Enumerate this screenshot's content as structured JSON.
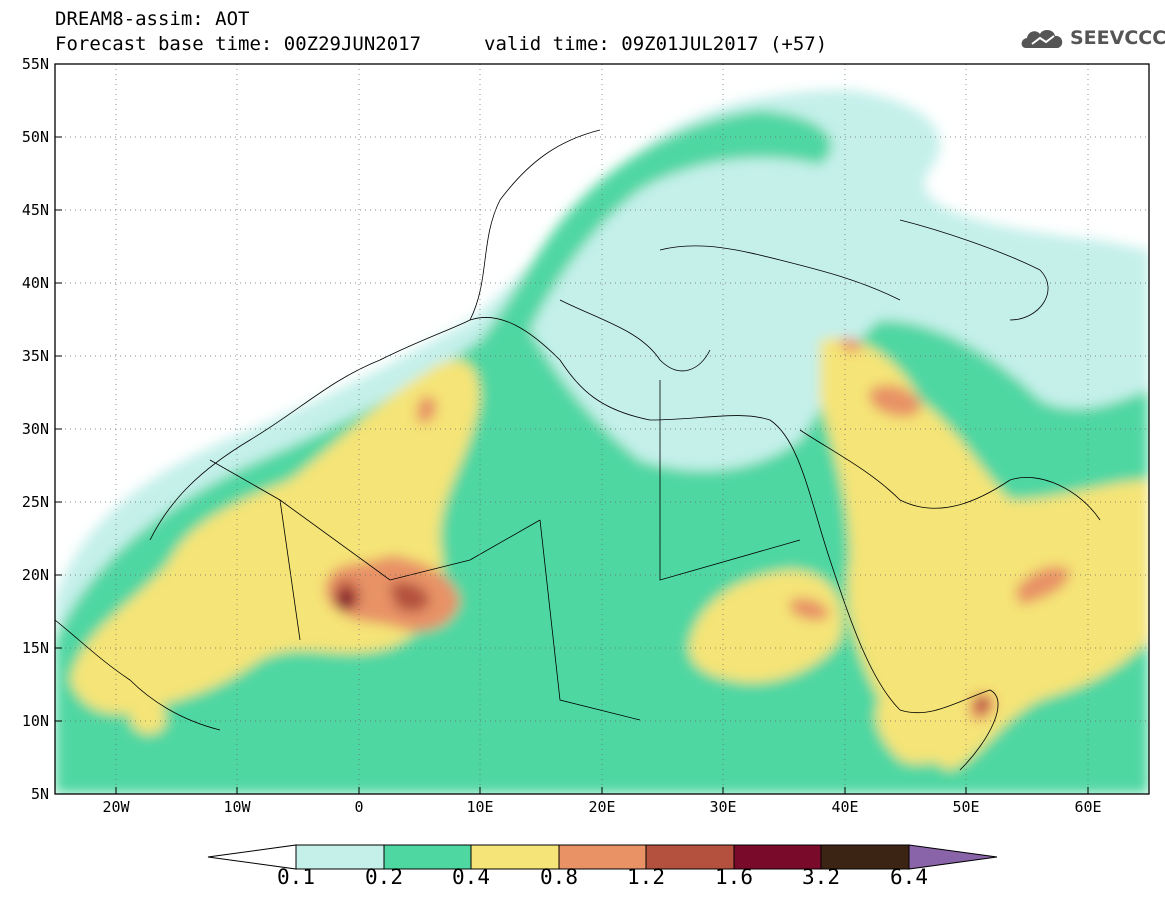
{
  "title": {
    "line1": "DREAM8-assim: AOT",
    "line2": "Forecast base time: 00Z29JUN2017",
    "valid": "valid time: 09Z01JUL2017 (+57)"
  },
  "logo": {
    "text": "SEEVCCC",
    "icon": "cloud-icon"
  },
  "axes": {
    "lat_labels": [
      "55N",
      "50N",
      "45N",
      "40N",
      "35N",
      "30N",
      "25N",
      "20N",
      "15N",
      "10N",
      "5N"
    ],
    "lon_labels": [
      "20W",
      "10W",
      "0",
      "10E",
      "20E",
      "30E",
      "40E",
      "50E",
      "60E"
    ],
    "lon_range": [
      -25,
      65
    ],
    "lat_range": [
      5,
      55
    ],
    "grid": "dotted"
  },
  "legend": {
    "placement": "bottom",
    "labels": [
      "0.1",
      "0.2",
      "0.4",
      "0.8",
      "1.2",
      "1.6",
      "3.2",
      "6.4"
    ],
    "colors": [
      "#ffffff",
      "#c5f0ea",
      "#4fd7a2",
      "#f5e477",
      "#e89266",
      "#b4513e",
      "#7a0a2a",
      "#3b2414",
      "#8a64a8"
    ]
  }
}
